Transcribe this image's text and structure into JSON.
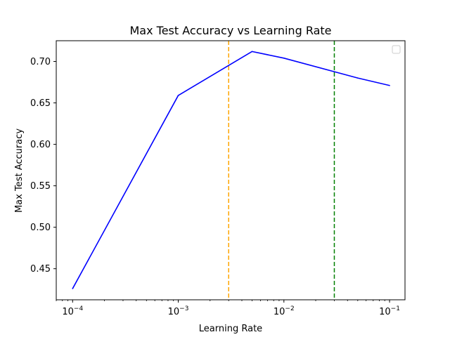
{
  "chart_data": {
    "type": "line",
    "title": "Max Test Accuracy vs Learning Rate",
    "xlabel": "Learning Rate",
    "ylabel": "Max Test Accuracy",
    "xscale": "log",
    "xlim": [
      7e-05,
      0.14
    ],
    "ylim": [
      0.4125,
      0.725
    ],
    "x_ticks": [
      {
        "value": 0.0001,
        "base": "10",
        "exp": "−4"
      },
      {
        "value": 0.001,
        "base": "10",
        "exp": "−3"
      },
      {
        "value": 0.01,
        "base": "10",
        "exp": "−2"
      },
      {
        "value": 0.1,
        "base": "10",
        "exp": "−1"
      }
    ],
    "y_ticks": [
      {
        "value": 0.45,
        "label": "0.45"
      },
      {
        "value": 0.5,
        "label": "0.50"
      },
      {
        "value": 0.55,
        "label": "0.55"
      },
      {
        "value": 0.6,
        "label": "0.60"
      },
      {
        "value": 0.65,
        "label": "0.65"
      },
      {
        "value": 0.7,
        "label": "0.70"
      }
    ],
    "series": [
      {
        "color": "#0000ff",
        "x": [
          0.0001,
          0.001,
          0.005,
          0.01,
          0.05,
          0.1
        ],
        "y": [
          0.426,
          0.659,
          0.712,
          0.704,
          0.68,
          0.671
        ]
      }
    ],
    "reference_lines": [
      {
        "x": 0.003,
        "color": "#ffa500",
        "style": "dashed"
      },
      {
        "x": 0.03,
        "color": "#008000",
        "style": "dashed"
      }
    ],
    "legend": {
      "position": "top-right",
      "entries": []
    },
    "grid": false
  }
}
